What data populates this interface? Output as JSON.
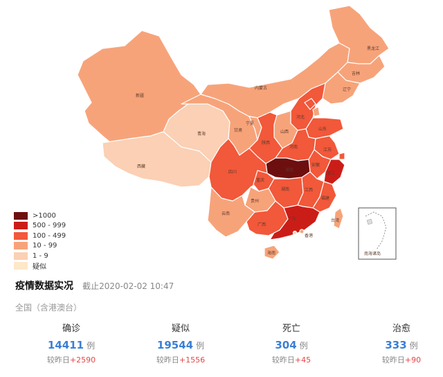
{
  "legend": [
    {
      "label": ">1000",
      "color": "#6e0f0f"
    },
    {
      "label": "500 - 999",
      "color": "#cb1d18"
    },
    {
      "label": "100 - 499",
      "color": "#f2583a"
    },
    {
      "label": "10 - 99",
      "color": "#f7a37a"
    },
    {
      "label": "1 - 9",
      "color": "#fbd0b4"
    },
    {
      "label": "疑似",
      "color": "#fde8c9"
    }
  ],
  "map": {
    "provinces": [
      {
        "name": "黑龙江",
        "color": "#f7a37a"
      },
      {
        "name": "吉林",
        "color": "#f7a37a"
      },
      {
        "name": "辽宁",
        "color": "#f7a37a"
      },
      {
        "name": "内蒙古",
        "color": "#f7a37a"
      },
      {
        "name": "北京",
        "color": "#f2583a"
      },
      {
        "name": "天津",
        "color": "#f7a37a"
      },
      {
        "name": "河北",
        "color": "#f2583a"
      },
      {
        "name": "山西",
        "color": "#f7a37a"
      },
      {
        "name": "山东",
        "color": "#f2583a"
      },
      {
        "name": "新疆",
        "color": "#f7a37a"
      },
      {
        "name": "西藏",
        "color": "#fbd0b4"
      },
      {
        "name": "青海",
        "color": "#fbd0b4"
      },
      {
        "name": "甘肃",
        "color": "#f7a37a"
      },
      {
        "name": "宁夏",
        "color": "#f7a37a"
      },
      {
        "name": "陕西",
        "color": "#f2583a"
      },
      {
        "name": "河南",
        "color": "#f2583a"
      },
      {
        "name": "江苏",
        "color": "#f2583a"
      },
      {
        "name": "安徽",
        "color": "#f2583a"
      },
      {
        "name": "湖北",
        "color": "#6e0f0f"
      },
      {
        "name": "浙江",
        "color": "#cb1d18"
      },
      {
        "name": "上海",
        "color": "#f2583a"
      },
      {
        "name": "四川",
        "color": "#f2583a"
      },
      {
        "name": "重庆",
        "color": "#f2583a"
      },
      {
        "name": "湖南",
        "color": "#f2583a"
      },
      {
        "name": "江西",
        "color": "#f2583a"
      },
      {
        "name": "贵州",
        "color": "#f7a37a"
      },
      {
        "name": "云南",
        "color": "#f7a37a"
      },
      {
        "name": "广西",
        "color": "#f2583a"
      },
      {
        "name": "广东",
        "color": "#cb1d18"
      },
      {
        "name": "福建",
        "color": "#f2583a"
      },
      {
        "name": "台湾",
        "color": "#f7a37a"
      },
      {
        "name": "海南",
        "color": "#f7a37a"
      },
      {
        "name": "香港",
        "color": "#f7a37a"
      },
      {
        "name": "澳门",
        "color": "#fbd0b4"
      }
    ],
    "inset_label": "南海诸岛"
  },
  "summary": {
    "title": "疫情数据实况",
    "as_of": "截止2020-02-02 10:47",
    "scope": "全国（含港澳台）",
    "unit": "例",
    "compare_label": "较昨日",
    "stats": [
      {
        "label": "确诊",
        "value": "14411",
        "delta": "+2590"
      },
      {
        "label": "疑似",
        "value": "19544",
        "delta": "+1556"
      },
      {
        "label": "死亡",
        "value": "304",
        "delta": "+45"
      },
      {
        "label": "治愈",
        "value": "333",
        "delta": "+90"
      }
    ]
  }
}
